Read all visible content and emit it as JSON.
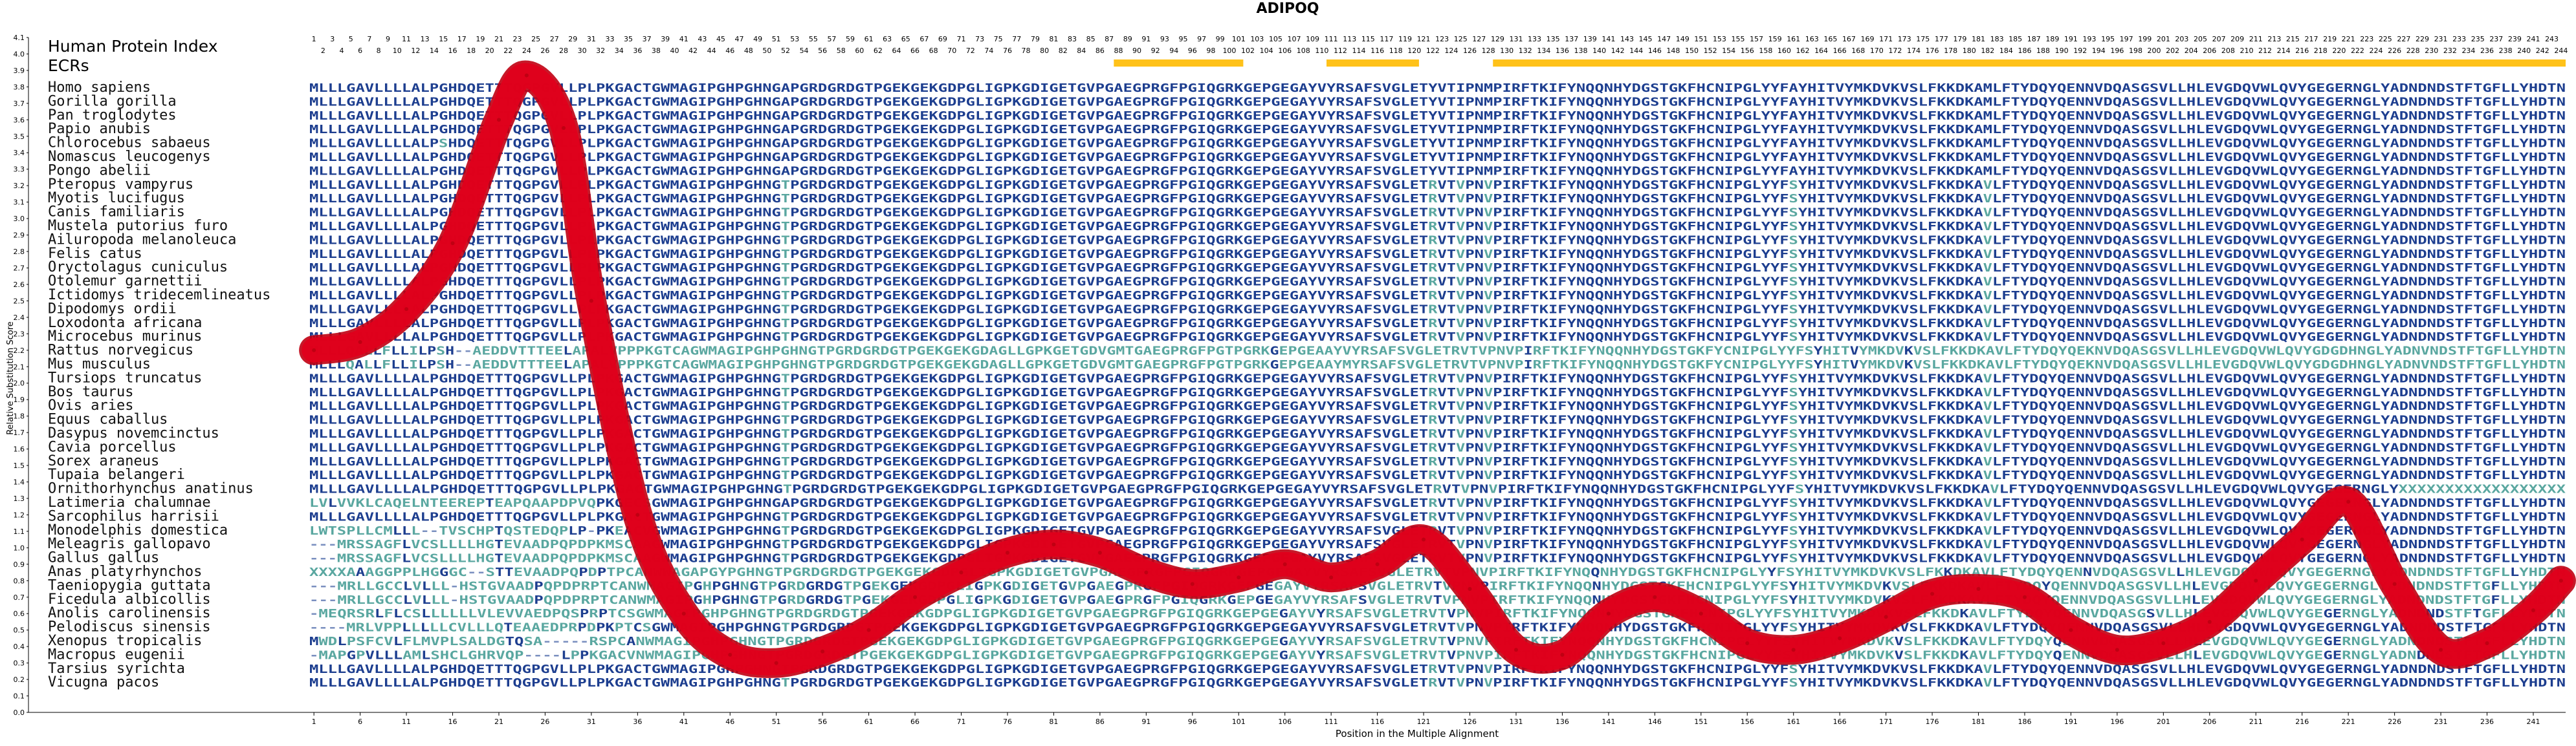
{
  "chart_data": {
    "type": "line",
    "title": "ADIPOQ",
    "xlabel": "Position in the Multiple Alignment",
    "ylabel": "Relative Substitution Score",
    "xlim": [
      1,
      244
    ],
    "ylim": [
      0.0,
      4.1
    ],
    "y_ticks": [
      "0.0",
      "0.1",
      "0.2",
      "0.3",
      "0.4",
      "0.5",
      "0.6",
      "0.7",
      "0.8",
      "0.9",
      "1.0",
      "1.1",
      "1.2",
      "1.3",
      "1.4",
      "1.5",
      "1.6",
      "1.7",
      "1.8",
      "1.9",
      "2.0",
      "2.1",
      "2.2",
      "2.3",
      "2.4",
      "2.5",
      "2.6",
      "2.7",
      "2.8",
      "2.9",
      "3.0",
      "3.1",
      "3.2",
      "3.3",
      "3.4",
      "3.5",
      "3.6",
      "3.7",
      "3.8",
      "3.9",
      "4.0",
      "4.1"
    ],
    "x_ticks": [
      1,
      6,
      11,
      16,
      21,
      26,
      31,
      36,
      41,
      46,
      51,
      56,
      61,
      66,
      71,
      76,
      81,
      86,
      91,
      96,
      101,
      106,
      111,
      116,
      121,
      126,
      131,
      136,
      141,
      146,
      151,
      156,
      161,
      166,
      171,
      176,
      181,
      186,
      191,
      196,
      201,
      206,
      211,
      216,
      221,
      226,
      231,
      236,
      241
    ],
    "hpi_label": "Human Protein Index",
    "ecr_label": "ECRs",
    "hpi_positions_count": 244,
    "ecr_regions": [
      [
        88,
        101
      ],
      [
        111,
        120
      ],
      [
        129,
        244
      ]
    ],
    "colors": {
      "curve": "#e0001b",
      "curve_edge": "#c00012",
      "ecr_bar": "#ffc21a",
      "conserved": "#1d3e8f",
      "variable": "#5aa7a0",
      "gap": "#7a8fbf",
      "species_text": "#111111"
    },
    "series": [
      {
        "x": [
          1,
          6,
          11,
          16,
          21,
          24,
          28,
          31,
          36,
          41,
          46,
          51,
          56,
          61,
          66,
          71,
          76,
          81,
          86,
          91,
          96,
          101,
          106,
          111,
          116,
          121,
          126,
          131,
          136,
          141,
          146,
          151,
          156,
          161,
          166,
          171,
          176,
          181,
          186,
          191,
          196,
          201,
          206,
          211,
          216,
          221,
          226,
          231,
          236,
          241,
          244
        ],
        "y": [
          2.2,
          2.25,
          2.45,
          2.85,
          3.6,
          3.87,
          3.55,
          2.5,
          1.2,
          0.6,
          0.35,
          0.3,
          0.37,
          0.5,
          0.7,
          0.85,
          0.97,
          1.02,
          0.97,
          0.85,
          0.78,
          0.82,
          0.9,
          0.82,
          0.9,
          1.05,
          0.75,
          0.38,
          0.35,
          0.6,
          0.7,
          0.6,
          0.42,
          0.38,
          0.45,
          0.58,
          0.72,
          0.75,
          0.7,
          0.5,
          0.38,
          0.42,
          0.55,
          0.8,
          1.05,
          1.28,
          0.78,
          0.38,
          0.42,
          0.62,
          0.8
        ]
      }
    ],
    "species": [
      {
        "name": "Homo sapiens",
        "seq": "MLLLGAVLLLLALPGHDQETTTQGPGVLLPLPKGACTGWMAGIPGHPGHNGAPGRDGRDGTPGEKGEKGDPGLIGPKGDIGETGVPGAEGPRGFPGIQGRKGEPGEGAYVYRSAFSVGLETYVTIPNMPIRFTKIFYNQQNHYDGSTGKFHCNIPGLYYFAYHITVYMKDVKVSLFKKDKAMLFTYDQYQENNVDQASGSVLLHLEVGDQVWLQVYGEGERNGLYADNDNDSTFTGFLLYHDTN"
      },
      {
        "name": "Gorilla gorilla",
        "seq": "MLLLGAVLLLLALPGHDQETTTQGPGVLLPLPKGACTGWMAGIPGHPGHNGAPGRDGRDGTPGEKGEKGDPGLIGPKGDIGETGVPGAEGPRGFPGIQGRKGEPGEGAYVYRSAFSVGLETYVTIPNMPIRFTKIFYNQQNHYDGSTGKFHCNIPGLYYFAYHITVYMKDVKVSLFKKDKAMLFTYDQYQENNVDQASGSVLLHLEVGDQVWLQVYGEGERNGLYADNDNDSTFTGFLLYHDTN"
      },
      {
        "name": "Pan troglodytes",
        "seq": "MLLLGAVLLLLALPGHDQETTTQGPGVLLPLPKGACTGWMAGIPGHPGHNGAPGRDGRDGTPGEKGEKGDPGLIGPKGDIGETGVPGAEGPRGFPGIQGRKGEPGEGAYVYRSAFSVGLETYVTIPNMPIRFTKIFYNQQNHYDGSTGKFHCNIPGLYYFAYHITVYMKDVKVSLFKKDKAMLFTYDQYQENNVDQASGSVLLHLEVGDQVWLQVYGEGERNGLYADNDNDSTFTGFLLYHDTN"
      },
      {
        "name": "Papio anubis",
        "seq": "MLLLGAVLLLLALPGHDQETTTQGPGVLLPLPKGACTGWMAGIPGHPGHNGAPGRDGRDGTPGEKGEKGDPGLIGPKGDIGETGVPGAEGPRGFPGIQGRKGEPGEGAYVYRSAFSVGLETYVTIPNMPIRFTKIFYNQQNHYDGSTGKFHCNIPGLYYFAYHITVYMKDVKVSLFKKDKAMLFTYDQYQENNVDQASGSVLLHLEVGDQVWLQVYGEGERNGLYADNDNDSTFTGFLLYHDTN"
      },
      {
        "name": "Chlorocebus sabaeus",
        "seq": "MLLLGAVLLLLALPSHDQETTTQGPGVLLPLPKGACTGWMAGIPGHPGHNGAPGRDGRDGTPGEKGEKGDPGLIGPKGDIGETGVPGAEGPRGFPGIQGRKGEPGEGAYVYRSAFSVGLETYVTIPNMPIRFTKIFYNQQNHYDGSTGKFHCNIPGLYYFAYHITVYMKDVKVSLFKKDKAMLFTYDQYQENNVDQASGSVLLHLEVGDQVWLQVYGEGERNGLYADNDNDSTFTGFLLYHDTN"
      },
      {
        "name": "Nomascus leucogenys",
        "seq": "MLLLGAVLLLLALPGHDQETTTQGPGVLLPLPKGACTGWMAGIPGHPGHNGAPGRDGRDGTPGEKGEKGDPGLIGPKGDIGETGVPGAEGPRGFPGIQGRKGEPGEGAYVYRSAFSVGLETYVTIPNMPIRFTKIFYNQQNHYDGSTGKFHCNIPGLYYFAYHITVYMKDVKVSLFKKDKAMLFTYDQYQENNVDQASGSVLLHLEVGDQVWLQVYGEGERNGLYADNDNDSTFTGFLLYHDTN"
      },
      {
        "name": "Pongo abelii",
        "seq": "MLLLGAVLLLLALPGHDQETTTQGPGVLLPLPKGACTGWMAGIPGHPGHNGAPGRDGRDGTPGEKGEKGDPGLIGPKGDIGETGVPGAEGPRGFPGIQGRKGEPGEGAYVYRSAFSVGLETYVTIPNMPIRFTKIFYNQQNHYDGSTGKFHCNIPGLYYFAYHITVYMKDVKVSLFKKDKAMLFTYDQYQENNVDQASGSVLLHLEVGDQVWLQVYGEGERNGLYADNDNDSTFTGFLLYHDTN"
      },
      {
        "name": "Pteropus vampyrus",
        "seq": "MLLLGAVLLLLALPGHDQETTTQGPGVLLPLPKGACTGWMAGIPGHPGHNGTPGRDGRDGTPGEKGEKGDPGLIGPKGDIGETGVPGAEGPRGFPGIQGRKGEPGEGAYVYRSAFSVGLETRVTVPNVPIRFTKIFYNQQNHYDGSTGKFHCNIPGLYYFSYHITVYMKDVKVSLFKKDKAVLFTYDQYQENNVDQASGSVLLHLEVGDQVWLQVYGEGERNGLYADNDNDSTFTGFLLYHDTN"
      },
      {
        "name": "Myotis lucifugus",
        "seq": "MLLLGAVLLLLALPGHDQETTTQGPGVLLPLPKGACTGWMAGIPGHPGHNGTPGRDGRDGTPGEKGEKGDPGLIGPKGDIGETGVPGAEGPRGFPGIQGRKGEPGEGAYVYRSAFSVGLETRVTVPNVPIRFTKIFYNQQNHYDGSTGKFHCNIPGLYYFSYHITVYMKDVKVSLFKKDKAVLFTYDQYQENNVDQASGSVLLHLEVGDQVWLQVYGEGERNGLYADNDNDSTFTGFLLYHDTN"
      },
      {
        "name": "Canis familiaris",
        "seq": "MLLLGAVLLLLALPGHDQETTTQGPGVLLPLPKGACTGWMAGIPGHPGHNGTPGRDGRDGTPGEKGEKGDPGLIGPKGDIGETGVPGAEGPRGFPGIQGRKGEPGEGAYVYRSAFSVGLETRVTVPNVPIRFTKIFYNQQNHYDGSTGKFHCNIPGLYYFSYHITVYMKDVKVSLFKKDKAVLFTYDQYQENNVDQASGSVLLHLEVGDQVWLQVYGEGERNGLYADNDNDSTFTGFLLYHDTN"
      },
      {
        "name": "Mustela putorius furo",
        "seq": "MLLLGAVLLLLALPGHDQETTTQGPGVLLPLPKGACTGWMAGIPGHPGHNGTPGRDGRDGTPGEKGEKGDPGLIGPKGDIGETGVPGAEGPRGFPGIQGRKGEPGEGAYVYRSAFSVGLETRVTVPNVPIRFTKIFYNQQNHYDGSTGKFHCNIPGLYYFSYHITVYMKDVKVSLFKKDKAVLFTYDQYQENNVDQASGSVLLHLEVGDQVWLQVYGEGERNGLYADNDNDSTFTGFLLYHDTN"
      },
      {
        "name": "Ailuropoda melanoleuca",
        "seq": "MLLLGAVLLLLALPGHDQETTTQGPGVLLPLPKGACTGWMAGIPGHPGHNGTPGRDGRDGTPGEKGEKGDPGLIGPKGDIGETGVPGAEGPRGFPGIQGRKGEPGEGAYVYRSAFSVGLETRVTVPNVPIRFTKIFYNQQNHYDGSTGKFHCNIPGLYYFSYHITVYMKDVKVSLFKKDKAVLFTYDQYQENNVDQASGSVLLHLEVGDQVWLQVYGEGERNGLYADNDNDSTFTGFLLYHDTN"
      },
      {
        "name": "Felis catus",
        "seq": "MLLLGAVLLLLALPGHDQETTTQGPGVLLPLPKGACTGWMAGIPGHPGHNGTPGRDGRDGTPGEKGEKGDPGLIGPKGDIGETGVPGAEGPRGFPGIQGRKGEPGEGAYVYRSAFSVGLETRVTVPNVPIRFTKIFYNQQNHYDGSTGKFHCNIPGLYYFSYHITVYMKDVKVSLFKKDKAVLFTYDQYQENNVDQASGSVLLHLEVGDQVWLQVYGEGERNGLYADNDNDSTFTGFLLYHDTN"
      },
      {
        "name": "Oryctolagus cuniculus",
        "seq": "MLLLGAVLLLLALPGHDQETTTQGPGVLLPLPKGACTGWMAGIPGHPGHNGTPGRDGRDGTPGEKGEKGDPGLIGPKGDIGETGVPGAEGPRGFPGIQGRKGEPGEGAYVYRSAFSVGLETRVTVPNVPIRFTKIFYNQQNHYDGSTGKFHCNIPGLYYFSYHITVYMKDVKVSLFKKDKAVLFTYDQYQENNVDQASGSVLLHLEVGDQVWLQVYGEGERNGLYADNDNDSTFTGFLLYHDTN"
      },
      {
        "name": "Otolemur garnettii",
        "seq": "MLLLGAVLLLLALPGHDQETTTQGPGVLLPLPKGACTGWMAGIPGHPGHNGTPGRDGRDGTPGEKGEKGDPGLIGPKGDIGETGVPGAEGPRGFPGIQGRKGEPGEGAYVYRSAFSVGLETRVTVPNVPIRFTKIFYNQQNHYDGSTGKFHCNIPGLYYFSYHITVYMKDVKVSLFKKDKAVLFTYDQYQENNVDQASGSVLLHLEVGDQVWLQVYGEGERNGLYADNDNDSTFTGFLLYHDTN"
      },
      {
        "name": "Ictidomys tridecemlineatus",
        "seq": "MLLLGAVLLLLALPGHDQETTTQGPGVLLPLPKGACTGWMAGIPGHPGHNGTPGRDGRDGTPGEKGEKGDPGLIGPKGDIGETGVPGAEGPRGFPGIQGRKGEPGEGAYVYRSAFSVGLETRVTVPNVPIRFTKIFYNQQNHYDGSTGKFHCNIPGLYYFSYHITVYMKDVKVSLFKKDKAVLFTYDQYQENNVDQASGSVLLHLEVGDQVWLQVYGEGERNGLYADNDNDSTFTGFLLYHDTN"
      },
      {
        "name": "Dipodomys ordii",
        "seq": "MLLLGAVLLLLALPGHDQETTTQGPGVLLPLPKGACTGWMAGIPGHPGHNGTPGRDGRDGTPGEKGEKGDPGLIGPKGDIGETGVPGAEGPRGFPGIQGRKGEPGEGAYVYRSAFSVGLETRVTVPNVPIRFTKIFYNQQNHYDGSTGKFHCNIPGLYYFSYHITVYMKDVKVSLFKKDKAVLFTYDQYQENNVDQASGSVLLHLEVGDQVWLQVYGEGERNGLYADNDNDSTFTGFLLYHDTN"
      },
      {
        "name": "Loxodonta africana",
        "seq": "MLLLGAVLLLLALPGHDQETTTQGPGVLLPLPKGACTGWMAGIPGHPGHNGTPGRDGRDGTPGEKGEKGDPGLIGPKGDIGETGVPGAEGPRGFPGIQGRKGEPGEGAYVYRSAFSVGLETRVTVPNVPIRFTKIFYNQQNHYDGSTGKFHCNIPGLYYFSYHITVYMKDVKVSLFKKDKAVLFTYDQYQENNVDQASGSVLLHLEVGDQVWLQVYGEGERNGLYADNDNDSTFTGFLLYHDTN"
      },
      {
        "name": "Microcebus murinus",
        "seq": "MLLLGAVLLLLALPGHDQETTTQGPGVLLPLPKGACTGWMAGIPGHPGHNGTPGRDGRDGTPGEKGEKGDPGLIGPKGDIGETGVPGAEGPRGFPGIQGRKGEPGEGAYVYRSAFSVGLETRVTVPNVPIRFTKIFYNQQNHYDGSTGKFHCNIPGLYYFSYHITVYMKDVKVSLFKKDKAVLFTYDQYQENNVDQASGSVLLHLEVGDQVWLQVYGEGERNGLYADNDNDSTFTGFLLYHDTN"
      },
      {
        "name": "Rattus norvegicus",
        "seq": "MLLLQALLFLLILPSH--AEDDVTTTEELAPALVPPPKGTCAGWMAGIPGHPGHNGTPGRDGRDGTPGEKGEKGDAGLLGPKGETGDVGMTGAEGPRGFPGTPGRKGEPGEAAYVYRSAFSVGLETRVTVPNVPIRFTKIFYNQQNHYDGSTGKFYCNIPGLYYFSYHITVYMKDVKVSLFKKDKAVLFTYDQYQEKNVDQASGSVLLHLEVGDQVWLQVYGDGDHNGLYADNVNDSTFTGFLLYHDTN"
      },
      {
        "name": "Mus musculus",
        "seq": "MLLLQALLFLLILPSH--AEDDVTTTEELAPALVPPPKGTCAGWMAGIPGHPGHNGTPGRDGRDGTPGEKGEKGDAGLLGPKGETGDVGMTGAEGPRGFPGTPGRKGEPGEAAYMYRSAFSVGLETRVTVPNVPIRFTKIFYNQQNHYDGSTGKFYCNIPGLYYFSYHITVYMKDVKVSLFKKDKAVLFTYDQYQEKNVDQASGSVLLHLEVGDQVWLQVYGDGDHNGLYADNVNDSTFTGFLLYHDTN"
      },
      {
        "name": "Tursiops truncatus",
        "seq": "MLLLGAVLLLLALPGHDQETTTQGPGVLLPLPKGACTGWMAGIPGHPGHNGTPGRDGRDGTPGEKGEKGDPGLIGPKGDIGETGVPGAEGPRGFPGIQGRKGEPGEGAYVYRSAFSVGLETRVTVPNVPIRFTKIFYNQQNHYDGSTGKFHCNIPGLYYFSYHITVYMKDVKVSLFKKDKAVLFTYDQYQENNVDQASGSVLLHLEVGDQVWLQVYGEGERNGLYADNDNDSTFTGFLLYHDTN"
      },
      {
        "name": "Bos taurus",
        "seq": "MLLLGAVLLLLALPGHDQETTTQGPGVLLPLPKGACTGWMAGIPGHPGHNGTPGRDGRDGTPGEKGEKGDPGLIGPKGDIGETGVPGAEGPRGFPGIQGRKGEPGEGAYVYRSAFSVGLETRVTVPNVPIRFTKIFYNQQNHYDGSTGKFHCNIPGLYYFSYHITVYMKDVKVSLFKKDKAVLFTYDQYQENNVDQASGSVLLHLEVGDQVWLQVYGEGERNGLYADNDNDSTFTGFLLYHDTN"
      },
      {
        "name": "Ovis aries",
        "seq": "MLLLGAVLLLLALPGHDQETTTQGPGVLLPLPKGACTGWMAGIPGHPGHNGTPGRDGRDGTPGEKGEKGDPGLIGPKGDIGETGVPGAEGPRGFPGIQGRKGEPGEGAYVYRSAFSVGLETRVTVPNVPIRFTKIFYNQQNHYDGSTGKFHCNIPGLYYFSYHITVYMKDVKVSLFKKDKAVLFTYDQYQENNVDQASGSVLLHLEVGDQVWLQVYGEGERNGLYADNDNDSTFTGFLLYHDTN"
      },
      {
        "name": "Equus caballus",
        "seq": "MLLLGAVLLLLALPGHDQETTTQGPGVLLPLPKGACTGWMAGIPGHPGHNGTPGRDGRDGTPGEKGEKGDPGLIGPKGDIGETGVPGAEGPRGFPGIQGRKGEPGEGAYVYRSAFSVGLETRVTVPNVPIRFTKIFYNQQNHYDGSTGKFHCNIPGLYYFSYHITVYMKDVKVSLFKKDKAVLFTYDQYQENNVDQASGSVLLHLEVGDQVWLQVYGEGERNGLYADNDNDSTFTGFLLYHDTN"
      },
      {
        "name": "Dasypus novemcinctus",
        "seq": "MLLLGAVLLLLALPGHDQETTTQGPGVLLPLPKGACTGWMAGIPGHPGHNGTPGRDGRDGTPGEKGEKGDPGLIGPKGDIGETGVPGAEGPRGFPGIQGRKGEPGEGAYVYRSAFSVGLETRVTVPNVPIRFTKIFYNQQNHYDGSTGKFHCNIPGLYYFSYHITVYMKDVKVSLFKKDKAVLFTYDQYQENNVDQASGSVLLHLEVGDQVWLQVYGEGERNGLYADNDNDSTFTGFLLYHDTN"
      },
      {
        "name": "Cavia porcellus",
        "seq": "MLLLGAVLLLLALPGHDQETTTQGPGVLLPLPKGACTGWMAGIPGHPGHNGTPGRDGRDGTPGEKGEKGDPGLIGPKGDIGETGVPGAEGPRGFPGIQGRKGEPGEGAYVYRSAFSVGLETRVTVPNVPIRFTKIFYNQQNHYDGSTGKFHCNIPGLYYFSYHITVYMKDVKVSLFKKDKAVLFTYDQYQENNVDQASGSVLLHLEVGDQVWLQVYGEGERNGLYADNDNDSTFTGFLLYHDTN"
      },
      {
        "name": "Sorex araneus",
        "seq": "MLLLGAVLLLLALPGHDQETTTQGPGVLLPLPKGACTGWMAGIPGHPGHNGTPGRDGRDGTPGEKGEKGDPGLIGPKGDIGETGVPGAEGPRGFPGIQGRKGEPGEGAYVYRSAFSVGLETRVTVPNVPIRFTKIFYNQQNHYDGSTGKFHCNIPGLYYFSYHITVYMKDVKVSLFKKDKAVLFTYDQYQENNVDQASGSVLLHLEVGDQVWLQVYGEGERNGLYADNDNDSTFTGFLLYHDTN"
      },
      {
        "name": "Tupaia belangeri",
        "seq": "MLLLGAVLLLLALPGHDQETTTQGPGVLLPLPKGACTGWMAGIPGHPGHNGTPGRDGRDGTPGEKGEKGDPGLIGPKGDIGETGVPGAEGPRGFPGIQGRKGEPGEGAYVYRSAFSVGLETRVTVPNVPIRFTKIFYNQQNHYDGSTGKFHCNIPGLYYFSYHITVYMKDVKVSLFKKDKAVLFTYDQYQENNVDQASGSVLLHLEVGDQVWLQVYGEGERNGLYADNDNDSTFTGFLLYHDTN"
      },
      {
        "name": "Ornithorhynchus anatinus",
        "seq": "MLLLGAVLLLLALPGHDQETTTQGPGVLLPLPKGACTGWMAGIPGHPGHNGTPGRDGRDGTPGEKGEKGDPGLIGPKGDIGETGVPGAEGPRGFPGIQGRKGEPGEGAYVYRSAFSVGLETRVTVPNVPIRFTKIFYNQQNHYDGSTGKFHCNIPGLYYFSYHITVYMKDVKVSLFKKDKAVLFTYDQYQENNVDQASGSVLLHLEVGDQVWLQVYGEGERNGLYXXXXXXXXXXXXXXXXXX"
      },
      {
        "name": "Latimeria chalumnae",
        "seq": "LVLVVKLCAQELNTEEREPTEAPQAAPDPVQPKGECSGWMAGIPGHPGHNGAPGRDGRDGTPGEKGEKGDPGLIGPKGDIGETGVPGAEGPRGFPGIQGRKGEPGEGAYVYRSAFSVGLETRVTVPNVPIRFTKIFYNQQNHYDGSTGKFHCNIPGLYYFSYHITVYMKDVKVSLFKKDKAVLFTYDQYQENNVDQASGSVLLHLEVGDQVWLQVYGEGERNGLYADNDNDSTFTGFLLYHDTN"
      },
      {
        "name": "Sarcophilus harrisii",
        "seq": "MLLLGAVLLLLALPGHDQETTTQGPGVLLPLPKGACTGWMAGIPGHPGHNGTPGRDGRDGTPGEKGEKGDPGLIGPKGDIGETGVPGAEGPRGFPGIQGRKGEPGEGAYVYRSAFSVGLETRVTVPNVPIRFTKIFYNQQNHYDGSTGKFHCNIPGLYYFSYHITVYMKDVKVSLFKKDKAVLFTYDQYQENNVDQASGSVLLHLEVGDQVWLQVYGEGERNGLYADNDNDSTFTGFLLYHDTN"
      },
      {
        "name": "Monodelphis domestica",
        "seq": "LWTSPLLCMLLL--TVSCHPTQSTEDQPLP-PKEACVGWMAGIPGHPGHNGTPGRDGRDGTPGEKGEKGDPGLIGPKGDIGETGVPGAEGPRGFPGIQGRKGEPGEGAYVYRSAFSVGLETRVTVPNVPIRFTKIFYNQQNHYDGSTGKFHCNIPGLYYFSYHITVYMKDVKVSLFKKDKAVLFTYDQYQENNVDQASGSVLLHLEVGDQVWLQVYGEGERNGLYADNDNDSTFTGFLLYHDTN"
      },
      {
        "name": "Meleagris gallopavo",
        "seq": "---MRSSAGFLVCSLLLLHGTEVAADPQPDPKMSCAAGWMAGIPGHPGHNGTPGRDGRDGTPGEKGEKGDPGLIGPKGDIGETGVPGAEGPRGFPGIQGRKGEPGEGAYVYRSAFSVGLETRVTVPNVPIRFTKIFYNQQNHYDGSTGKFHCNIPGLYYFSYHITVYMKDVKVSLFKKDKAVLFTYDQYQENNVDQASGSVLLHLEVGDQVWLQVYGEGERNGLYADNDNDSTFTGFLLYHDTN"
      },
      {
        "name": "Gallus gallus",
        "seq": "---MRSSAGFLVCSLLLLHGTEVAADPQPDPKMSCAAGWMAGIPGHPGHNGTPGRDGRDGTPGEKGEKGDPGLIGPKGDIGETGVPGAEGPRGFPGIQGRKGEPGEGAYVYRSAFSVGLETRVTVPNVPIRFTKIFYNQQNHYDGSTGKFHCNIPGLYYFSYHITVYMKDVKVSLFKKDKAVLFTYDQYQENNVDQASGSVLLHLEVGDQVWLQVYGEGERNGLYADNDNDSTFTGFLLYHDTN"
      },
      {
        "name": "Anas platyrhynchos",
        "seq": "XXXXAAAGGPPLHGGGC--STTEVAADPQPDPTPCANWWAGAPGYPGHNGTPGRDGRDGTPGEKGEKGDPGLIGPKGDIGETGVPGAEGPRGFPGIQGRKGEPGEGAYVYRSAFSVGLETRVTVPNVPIRFTKIFYNQQNHYDGSTGKFHCNIPGLYYFSYHITVYMKDVKVSLFKKDKAVLFTYDQYQENNVDQASGSVLLHLEVGDQVWLQVYGEGERNGLYADNDNDSTFTGFLLYHDTN"
      },
      {
        "name": "Taeniopygia guttata",
        "seq": "---MRLLGCCLVLLL-HSTGVAADPQPDPRPTCANWMAGIPGHPGHNGTPGRDGRDGTPGEKGEKGDPGLIGPKGDIGETGVPGAEGPRGFPGIQGRKGEPGEGAYVYRSAFSVGLETRVTVPNVPIRFTKIFYNQQNHYDGSTGKFHCNIPGLYYFSYHITVYMKDVKVSLFKKDKAVLFTYDQYQENNVDQASGSVLLHLEVGDQVWLQVYGEGERNGLYADNDNDSTFTGFLLYHDTN"
      },
      {
        "name": "Ficedula albicollis",
        "seq": "---MRLLGCCLVLLL-HSTGVAADPQPDPRPTCANWMAGIPGHPGHNGTPGRDGRDGTPGEKGEKGDPGLIGPKGDIGETGVPGAEGPRGFPGIQGRKGEPGEGAYVYRSAFSVGLETRVTVPNVPIRFTKIFYNQQNHYDGSTGKFHCNIPGLYYFSYHITVYMKDVKVSLFKKDKAVLFTYDQYQENNVDQASGSVLLHLEVGDQVWLQVYGEGERNGLYADNDNDSTFTGFLLYHDTN"
      },
      {
        "name": "Anolis carolinensis",
        "seq": "-MEQRSRLFLCSLLLLLLVLEVVAEDPQSPRPTCSGWMAGIPGHPGHNGTPGRDGRDGTPGEKGEKGDPGLIGPKGDIGETGVPGAEGPRGFPGIQGRKGEPGEGAYVYRSAFSVGLETRVTVPNVPIRFTKIFYNQQNHYDGSTGKFHCNIPGLYYFSYHITVYMKDVKVSLFKKDKAVLFTYDQYQENNVDQASGSVLLHLEVGDQVWLQVYGEGERNGLYADNDNDSTFTGFLLYHDTN"
      },
      {
        "name": "Pelodiscus sinensis",
        "seq": "----MRLVPPLLLLLCVLLLQTEAAEDPRPDPKPTCSGWMAGIPGHPGHNGTPGRDGRDGTPGEKGEKGDPGLIGPKGDIGETGVPGAEGPRGFPGIQGRKGEPGEGAYVYRSAFSVGLETRVTVPNVPIRFTKIFYNQQNHYDGSTGKFHCNIPGLYYFSYHITVYMKDVKVSLFKKDKAVLFTYDQYQENNVDQASGSVLLHLEVGDQVWLQVYGEGERNGLYADNDNDSTFTGFLLYHDTN"
      },
      {
        "name": "Xenopus tropicalis",
        "seq": "MWDLPSFCVLFLMVPLSALDGTQSA-----RSPCANWMAGIPGHPGHNGTPGRDGRDGTPGEKGEKGDPGLIGPKGDIGETGVPGAEGPRGFPGIQGRKGEPGEGAYVYRSAFSVGLETRVTVPNVPIRFTKIFYNQQNHYDGSTGKFHCNIPGLYYFSYHITVYMKDVKVSLFKKDKAVLFTYDQYQENNVDQASGSVLLHLEVGDQVWLQVYGEGERNGLYADNDNDSTFTGFLLYHDTN"
      },
      {
        "name": "Macropus eugenii",
        "seq": "-MAPGPVLLLAMLSHCLGHRVQP----LPPKGACVNWMAGIPGHPGHNGTPGRDGRDGTPGEKGEKGDPGLIGPKGDIGETGVPGAEGPRGFPGIQGRKGEPGEGAYVYRSAFSVGLETRVTVPNVPIRFTKIFYNQQNHYDGSTGKFHCNIPGLYYFSYHITVYMKDVKVSLFKKDKAVLFTYDQYQENNVDQASGSVLLHLEVGDQVWLQVYGEGERNGLYADNDNDSTFTGFLLYHDTN"
      },
      {
        "name": "Tarsius syrichta",
        "seq": "MLLLGAVLLLLALPGHDQETTTQGPGVLLPLPKGACTGWMAGIPGHPGHNGTPGRDGRDGTPGEKGEKGDPGLIGPKGDIGETGVPGAEGPRGFPGIQGRKGEPGEGAYVYRSAFSVGLETRVTVPNVPIRFTKIFYNQQNHYDGSTGKFHCNIPGLYYFSYHITVYMKDVKVSLFKKDKAVLFTYDQYQENNVDQASGSVLLHLEVGDQVWLQVYGEGERNGLYADNDNDSTFTGFLLYHDTN"
      },
      {
        "name": "Vicugna pacos",
        "seq": "MLLLGAVLLLLALPGHDQETTTQGPGVLLPLPKGACTGWMAGIPGHPGHNGTPGRDGRDGTPGEKGEKGDPGLIGPKGDIGETGVPGAEGPRGFPGIQGRKGEPGEGAYVYRSAFSVGLETRVTVPNVPIRFTKIFYNQQNHYDGSTGKFHCNIPGLYYFSYHITVYMKDVKVSLFKKDKAVLFTYDQYQENNVDQASGSVLLHLEVGDQVWLQVYGEGERNGLYADNDNDSTFTGFLLYHDTN"
      }
    ]
  }
}
